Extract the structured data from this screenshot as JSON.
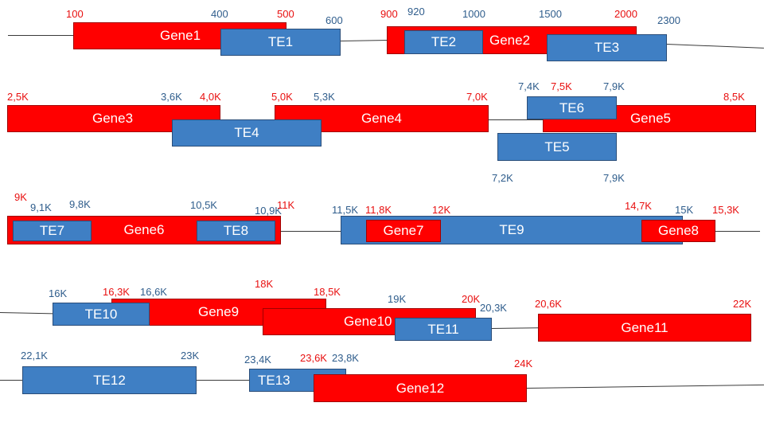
{
  "colors": {
    "gene": "#ff0000",
    "te": "#3f7fc4",
    "gene_label": "#e81010",
    "te_label": "#2f5d8c",
    "line": "#3a3a3a"
  },
  "genes": [
    "Gene1",
    "Gene2",
    "Gene3",
    "Gene4",
    "Gene5",
    "Gene6",
    "Gene7",
    "Gene8",
    "Gene9",
    "Gene10",
    "Gene11",
    "Gene12"
  ],
  "tes": [
    "TE1",
    "TE2",
    "TE3",
    "TE4",
    "TE5",
    "TE6",
    "TE7",
    "TE8",
    "TE9",
    "TE10",
    "TE11",
    "TE12",
    "TE13"
  ],
  "positions": {
    "r1": [
      "100",
      "400",
      "500",
      "600",
      "900",
      "920",
      "1000",
      "1500",
      "2000",
      "2300"
    ],
    "r2": [
      "2,5K",
      "3,6K",
      "4,0K",
      "5,0K",
      "5,3K",
      "7,0K",
      "7,4K",
      "7,5K",
      "7,9K",
      "8,5K",
      "7,2K",
      "7,9K"
    ],
    "r3": [
      "9K",
      "9,1K",
      "9,8K",
      "10,5K",
      "10,9K",
      "11K",
      "11,5K",
      "11,8K",
      "12K",
      "14,7K",
      "15K",
      "15,3K"
    ],
    "r4": [
      "16K",
      "16,3K",
      "16,6K",
      "18K",
      "18,5K",
      "19K",
      "20K",
      "20,3K",
      "20,6K",
      "22K"
    ],
    "r5": [
      "22,1K",
      "23K",
      "23,4K",
      "23,6K",
      "23,8K",
      "24K"
    ]
  }
}
